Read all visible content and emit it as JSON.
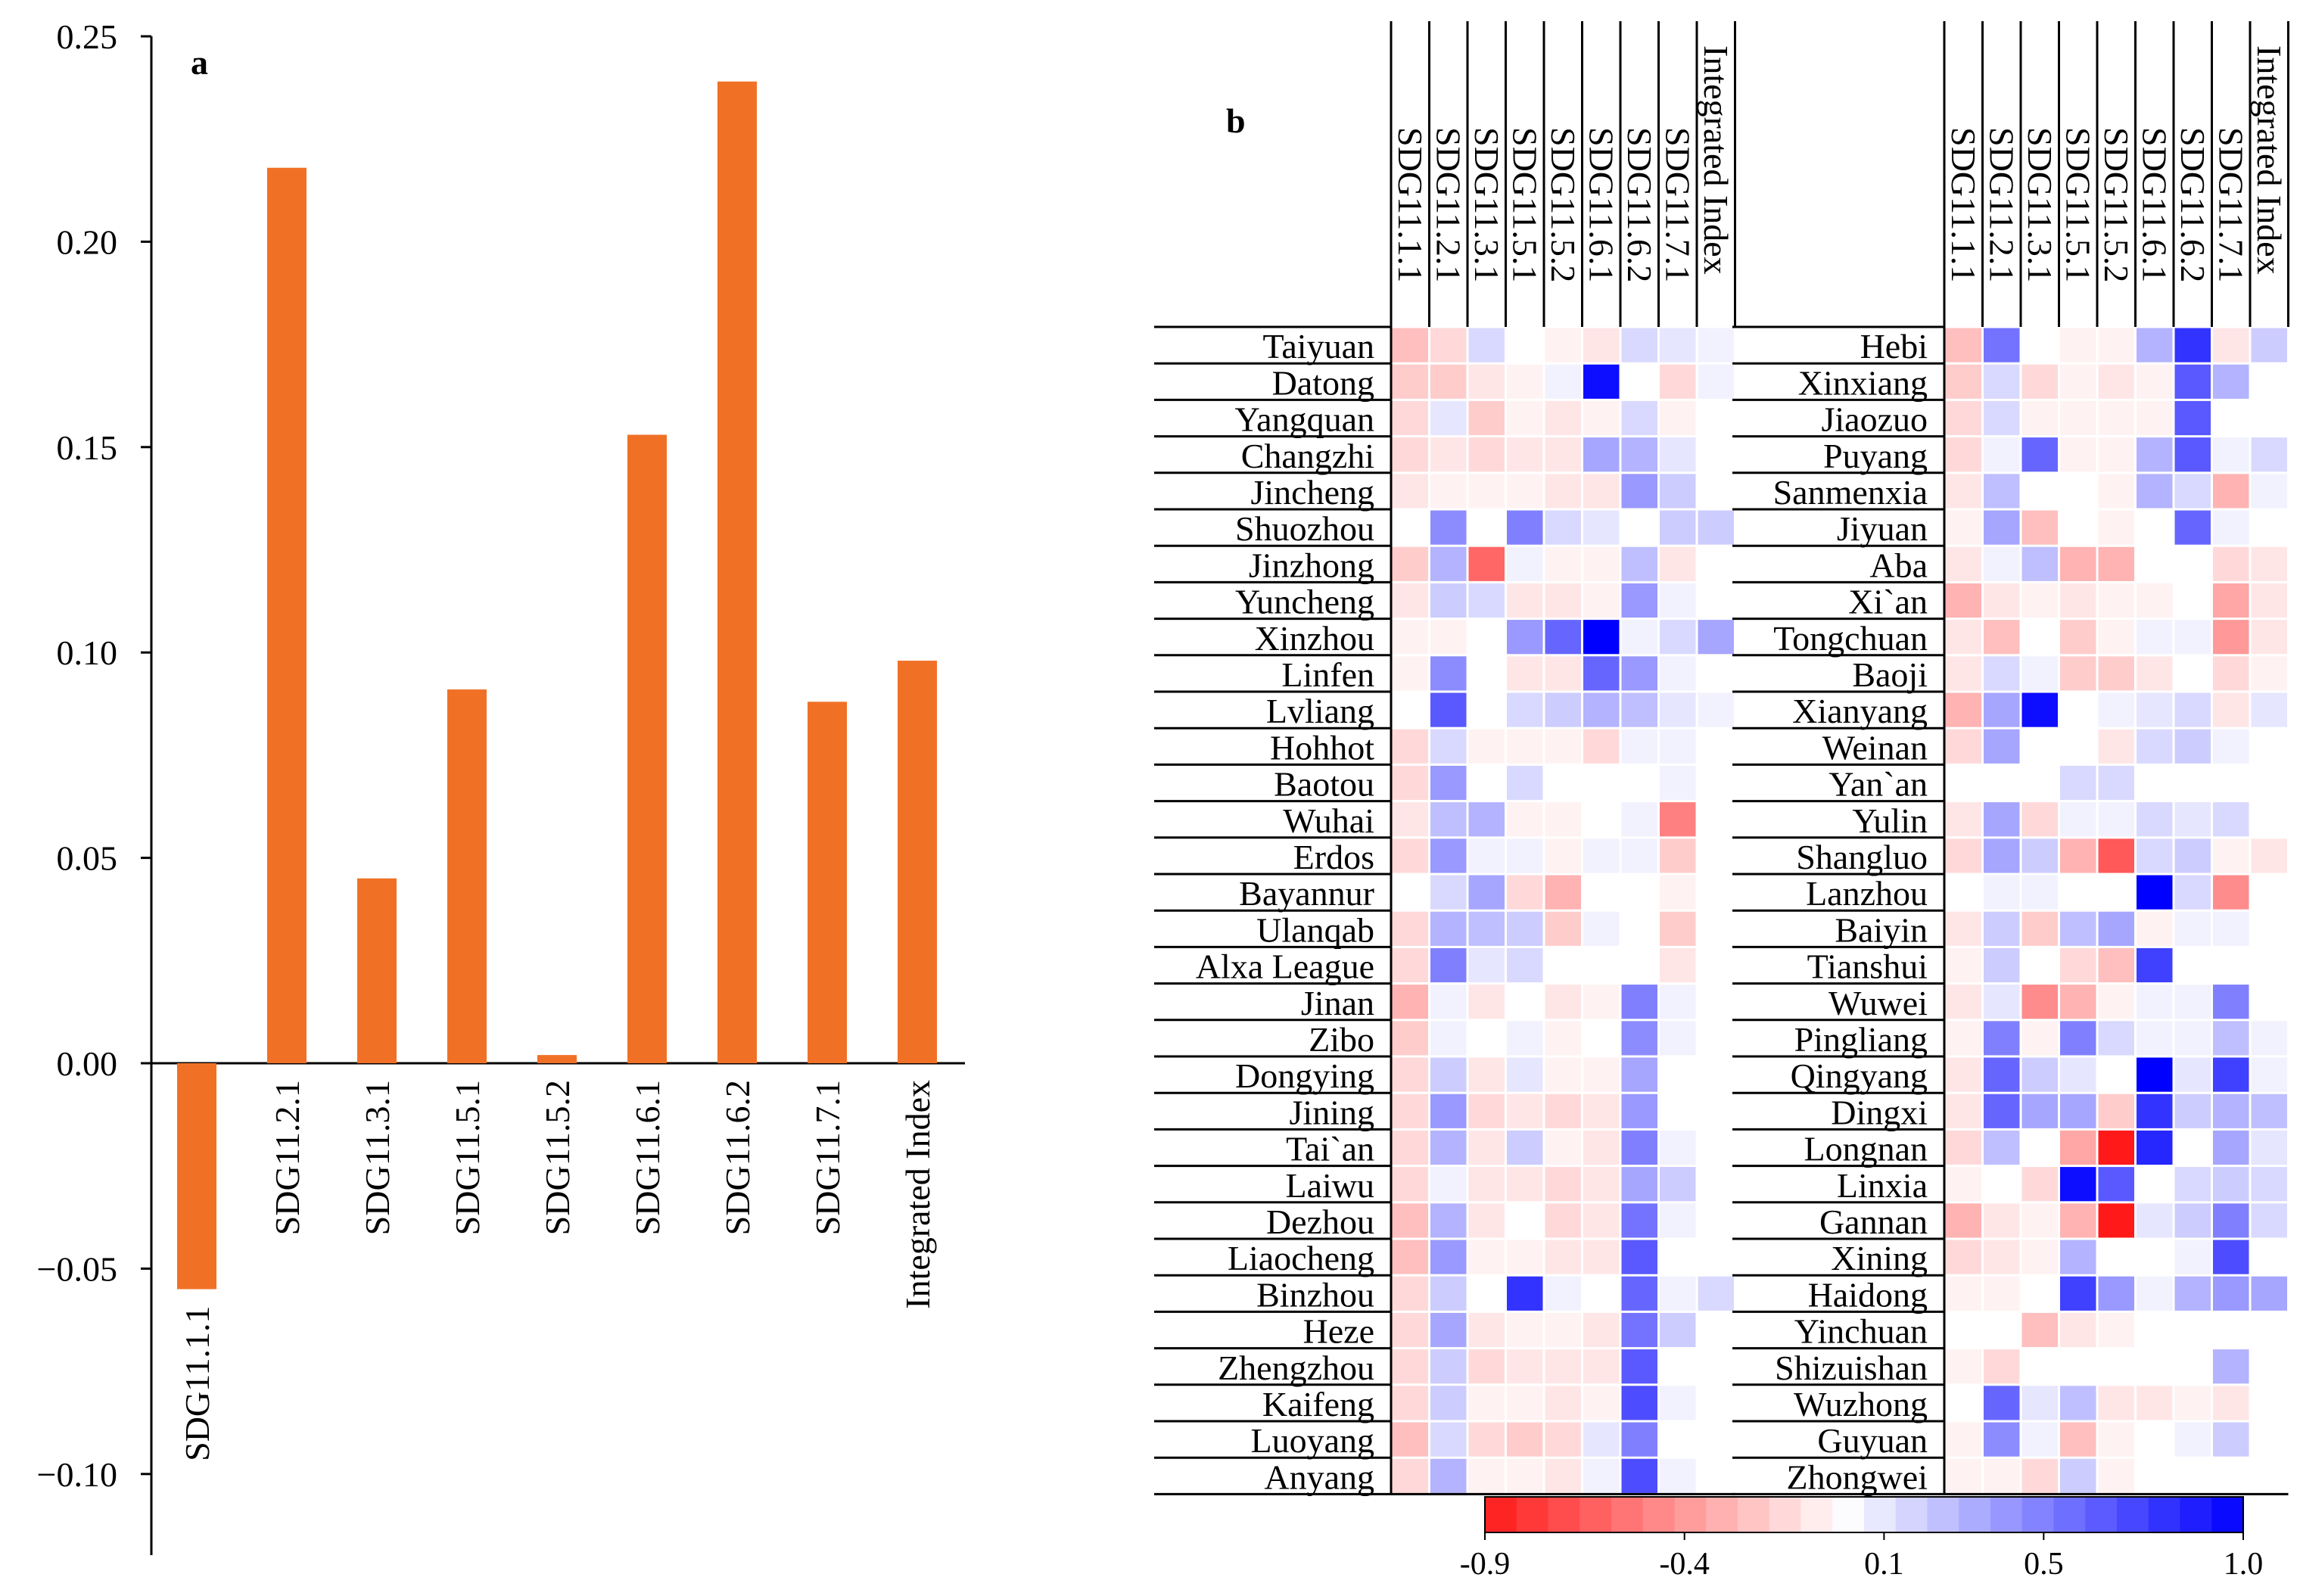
{
  "chart_data": [
    {
      "type": "bar",
      "panel": "a",
      "title": "",
      "xlabel": "",
      "ylabel": "",
      "ylim": [
        -0.12,
        0.25
      ],
      "yticks": [
        -0.1,
        -0.05,
        0.0,
        0.05,
        0.1,
        0.15,
        0.2,
        0.25
      ],
      "ytick_labels": [
        "−0.10",
        "−0.05",
        "0.00",
        "0.05",
        "0.10",
        "0.15",
        "0.20",
        "0.25"
      ],
      "categories": [
        "SDG11.1.1",
        "SDG11.2.1",
        "SDG11.3.1",
        "SDG11.5.1",
        "SDG11.5.2",
        "SDG11.6.1",
        "SDG11.6.2",
        "SDG11.7.1",
        "Integrated Index"
      ],
      "values": [
        -0.055,
        0.218,
        0.045,
        0.091,
        0.002,
        0.153,
        0.239,
        0.088,
        0.098
      ],
      "colors": {
        "bar": "#f07126"
      }
    },
    {
      "type": "heatmap",
      "panel": "b",
      "columns": [
        "SDG11.1.1",
        "SDG11.2.1",
        "SDG11.3.1",
        "SDG11.5.1",
        "SDG11.5.2",
        "SDG11.6.1",
        "SDG11.6.2",
        "SDG11.7.1",
        "Integrated Index"
      ],
      "rows_left": [
        "Taiyuan",
        "Datong",
        "Yangquan",
        "Changzhi",
        "Jincheng",
        "Shuozhou",
        "Jinzhong",
        "Yuncheng",
        "Xinzhou",
        "Linfen",
        "Lvliang",
        "Hohhot",
        "Baotou",
        "Wuhai",
        "Erdos",
        "Bayannur",
        "Ulanqab",
        "Alxa League",
        "Jinan",
        "Zibo",
        "Dongying",
        "Jining",
        "Tai`an",
        "Laiwu",
        "Dezhou",
        "Liaocheng",
        "Binzhou",
        "Heze",
        "Zhengzhou",
        "Kaifeng",
        "Luoyang",
        "Anyang"
      ],
      "rows_right": [
        "Hebi",
        "Xinxiang",
        "Jiaozuo",
        "Puyang",
        "Sanmenxia",
        "Jiyuan",
        "Aba",
        "Xi`an",
        "Tongchuan",
        "Baoji",
        "Xianyang",
        "Weinan",
        "Yan`an",
        "Yulin",
        "Shangluo",
        "Lanzhou",
        "Baiyin",
        "Tianshui",
        "Wuwei",
        "Pingliang",
        "Qingyang",
        "Dingxi",
        "Longnan",
        "Linxia",
        "Gannan",
        "Xining",
        "Haidong",
        "Yinchuan",
        "Shizuishan",
        "Wuzhong",
        "Guyuan",
        "Zhongwei"
      ],
      "values_left": [
        [
          -0.25,
          -0.15,
          0.15,
          0,
          -0.05,
          -0.1,
          0.15,
          0.1,
          0.05
        ],
        [
          -0.2,
          -0.2,
          -0.1,
          -0.05,
          0.05,
          0.95,
          0,
          -0.15,
          0.05
        ],
        [
          -0.15,
          0.1,
          -0.2,
          -0.05,
          -0.1,
          -0.05,
          0.15,
          -0.05,
          0
        ],
        [
          -0.15,
          -0.1,
          -0.15,
          -0.1,
          -0.1,
          0.35,
          0.3,
          0.1,
          0
        ],
        [
          -0.1,
          -0.05,
          -0.05,
          -0.05,
          -0.1,
          -0.1,
          0.4,
          0.2,
          0
        ],
        [
          0,
          0.45,
          0,
          0.5,
          0.15,
          0.1,
          0,
          0.2,
          0.2
        ],
        [
          -0.2,
          0.3,
          -0.6,
          0.05,
          -0.05,
          -0.05,
          0.25,
          -0.1,
          0
        ],
        [
          -0.1,
          0.2,
          0.15,
          -0.1,
          -0.1,
          -0.05,
          0.4,
          0.05,
          0
        ],
        [
          -0.05,
          -0.05,
          0,
          0.4,
          0.6,
          1.0,
          0.05,
          0.15,
          0.35
        ],
        [
          -0.05,
          0.45,
          0,
          -0.1,
          -0.1,
          0.6,
          0.4,
          0.05,
          0
        ],
        [
          0,
          0.65,
          0,
          0.15,
          0.2,
          0.3,
          0.25,
          0.1,
          0.05
        ],
        [
          -0.15,
          0.15,
          -0.05,
          -0.05,
          -0.05,
          -0.15,
          0.05,
          0.05,
          0
        ],
        [
          -0.15,
          0.4,
          0,
          0.15,
          0,
          0,
          0,
          0.05,
          0
        ],
        [
          -0.1,
          0.25,
          0.3,
          -0.05,
          -0.05,
          0,
          0.05,
          -0.5,
          0
        ],
        [
          -0.15,
          0.4,
          0.05,
          0.05,
          -0.05,
          0.05,
          0.05,
          -0.2,
          0
        ],
        [
          0,
          0.15,
          0.35,
          -0.15,
          -0.3,
          0,
          0,
          -0.05,
          0
        ],
        [
          -0.15,
          0.3,
          0.25,
          0.2,
          -0.2,
          0.05,
          0,
          -0.2,
          0
        ],
        [
          -0.15,
          0.5,
          0.1,
          0.15,
          0,
          0,
          0,
          -0.1,
          0
        ],
        [
          -0.3,
          0.05,
          -0.1,
          0,
          -0.1,
          -0.05,
          0.5,
          0.05,
          0
        ],
        [
          -0.2,
          0.05,
          0,
          0.05,
          -0.05,
          0,
          0.45,
          0.05,
          0
        ],
        [
          -0.15,
          0.2,
          -0.1,
          0.1,
          -0.05,
          -0.05,
          0.35,
          0,
          0
        ],
        [
          -0.15,
          0.4,
          -0.15,
          -0.1,
          -0.15,
          -0.1,
          0.4,
          0,
          0
        ],
        [
          -0.15,
          0.3,
          -0.1,
          0.2,
          -0.05,
          -0.1,
          0.5,
          0.05,
          0
        ],
        [
          -0.15,
          0.05,
          -0.1,
          -0.1,
          -0.15,
          -0.1,
          0.35,
          0.2,
          0
        ],
        [
          -0.25,
          0.3,
          -0.1,
          0,
          -0.15,
          -0.1,
          0.55,
          0.05,
          0
        ],
        [
          -0.25,
          0.4,
          -0.05,
          -0.05,
          -0.1,
          -0.1,
          0.65,
          0,
          0
        ],
        [
          -0.15,
          0.2,
          0,
          0.8,
          0.05,
          0,
          0.6,
          0.05,
          0.15
        ],
        [
          -0.15,
          0.35,
          -0.1,
          -0.05,
          -0.05,
          -0.1,
          0.55,
          0.2,
          0
        ],
        [
          -0.15,
          0.2,
          -0.15,
          -0.1,
          -0.1,
          -0.1,
          0.65,
          0,
          0
        ],
        [
          -0.15,
          0.2,
          -0.05,
          -0.05,
          -0.1,
          -0.05,
          0.7,
          0.05,
          0
        ],
        [
          -0.25,
          0.15,
          -0.15,
          -0.2,
          -0.15,
          0.1,
          0.5,
          0,
          0
        ],
        [
          -0.15,
          0.3,
          -0.05,
          -0.05,
          -0.1,
          0.05,
          0.7,
          0.05,
          0
        ]
      ],
      "values_right": [
        [
          -0.25,
          0.55,
          0,
          -0.05,
          -0.05,
          0.3,
          0.8,
          -0.1,
          0.2
        ],
        [
          -0.2,
          0.15,
          -0.15,
          -0.05,
          -0.1,
          -0.05,
          0.65,
          0.3,
          0
        ],
        [
          -0.15,
          0.15,
          -0.05,
          -0.05,
          -0.05,
          -0.05,
          0.65,
          0,
          0
        ],
        [
          -0.15,
          0.05,
          0.6,
          -0.05,
          -0.05,
          0.3,
          0.65,
          0.05,
          0.15
        ],
        [
          -0.1,
          0.25,
          0,
          0,
          -0.05,
          0.3,
          0.15,
          -0.3,
          0.05
        ],
        [
          -0.05,
          0.35,
          -0.25,
          0,
          -0.05,
          0,
          0.6,
          0.05,
          0
        ],
        [
          -0.1,
          0.05,
          0.25,
          -0.3,
          -0.3,
          0,
          0,
          -0.15,
          -0.1
        ],
        [
          -0.3,
          -0.1,
          -0.05,
          -0.1,
          -0.05,
          -0.05,
          0,
          -0.35,
          -0.1
        ],
        [
          -0.1,
          -0.25,
          0,
          -0.2,
          -0.05,
          0.05,
          0.05,
          -0.4,
          -0.1
        ],
        [
          -0.1,
          0.15,
          0.05,
          -0.2,
          -0.2,
          -0.1,
          0,
          -0.15,
          -0.05
        ],
        [
          -0.3,
          0.35,
          0.95,
          0,
          0.05,
          0.1,
          0.15,
          -0.1,
          0.1
        ],
        [
          -0.15,
          0.35,
          0,
          0,
          -0.1,
          0.15,
          0.2,
          0.05,
          0
        ],
        [
          0,
          0,
          0,
          0.15,
          0.15,
          0,
          0,
          0,
          0
        ],
        [
          -0.1,
          0.35,
          -0.15,
          0.05,
          0.05,
          0.15,
          0.1,
          0.15,
          0
        ],
        [
          -0.15,
          0.35,
          0.2,
          -0.3,
          -0.65,
          0.15,
          0.2,
          -0.05,
          -0.1
        ],
        [
          0,
          0.05,
          0.05,
          0,
          0,
          1.0,
          0.15,
          -0.45,
          0
        ],
        [
          -0.1,
          0.2,
          -0.2,
          0.25,
          0.35,
          -0.05,
          0.05,
          0.05,
          0
        ],
        [
          -0.05,
          0.2,
          0,
          -0.15,
          -0.25,
          0.75,
          0,
          0,
          0
        ],
        [
          -0.1,
          0.1,
          -0.45,
          -0.3,
          -0.05,
          0.05,
          0.05,
          0.5,
          0
        ],
        [
          -0.05,
          0.5,
          -0.05,
          0.5,
          0.15,
          0.05,
          0.05,
          0.25,
          0.05
        ],
        [
          -0.1,
          0.6,
          0.2,
          0.1,
          0,
          1.0,
          0.1,
          0.75,
          0.05
        ],
        [
          -0.1,
          0.6,
          0.35,
          0.35,
          -0.2,
          0.8,
          0.2,
          0.3,
          0.25
        ],
        [
          -0.15,
          0.25,
          0,
          -0.35,
          -0.9,
          0.85,
          0,
          0.35,
          0.1
        ],
        [
          -0.05,
          0,
          -0.15,
          0.95,
          0.65,
          0,
          0.15,
          0.2,
          0.15
        ],
        [
          -0.3,
          -0.1,
          -0.05,
          -0.3,
          -0.9,
          0.1,
          0.2,
          0.5,
          0.15
        ],
        [
          -0.15,
          -0.1,
          -0.05,
          0.3,
          0,
          0,
          0.05,
          0.7,
          0
        ],
        [
          -0.05,
          -0.05,
          0,
          0.75,
          0.4,
          0.05,
          0.3,
          0.4,
          0.35
        ],
        [
          0,
          0,
          -0.25,
          -0.1,
          -0.05,
          0,
          0,
          0,
          0
        ],
        [
          -0.05,
          -0.15,
          0,
          0,
          0,
          0,
          0,
          0.3,
          0
        ],
        [
          0,
          0.6,
          0.1,
          0.25,
          -0.1,
          -0.1,
          -0.05,
          -0.1,
          0
        ],
        [
          -0.05,
          0.45,
          0.05,
          -0.25,
          -0.05,
          0,
          0.05,
          0.2,
          0
        ],
        [
          -0.05,
          -0.05,
          -0.15,
          0.2,
          -0.05,
          0,
          0,
          0,
          0
        ]
      ],
      "colorbar": {
        "range": [
          -0.9,
          1.0
        ],
        "tick_values": [
          -0.9,
          -0.4,
          0.1,
          0.5,
          1.0
        ],
        "tick_labels": [
          "-0.9",
          "-0.4",
          "0.1",
          "0.5",
          "1.0"
        ],
        "low_color": "#ff0000",
        "mid_color": "#ffffff",
        "high_color": "#0000ff",
        "steps": 24
      }
    }
  ],
  "panel_labels": {
    "a": "a",
    "b": "b"
  }
}
